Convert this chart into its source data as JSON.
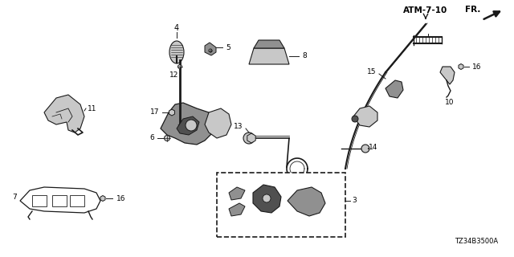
{
  "page_ref": "ATM-7-10",
  "fr_label": "FR.",
  "part_number": "TZ34B3500A",
  "bg_color": "#ffffff",
  "line_color": "#1a1a1a",
  "text_color": "#000000",
  "figsize": [
    6.4,
    3.2
  ],
  "dpi": 100,
  "border_color": "#888888",
  "gray_fill": "#c8c8c8",
  "dark_fill": "#505050",
  "mid_fill": "#909090"
}
